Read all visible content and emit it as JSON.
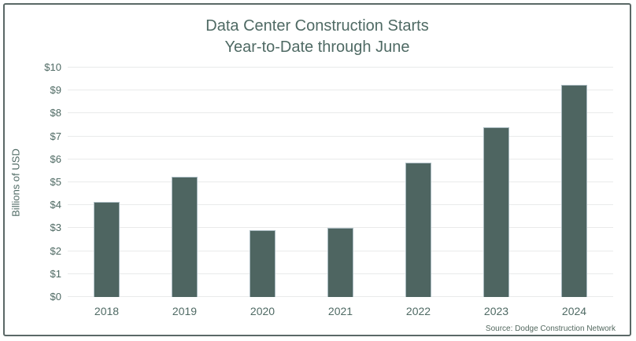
{
  "chart_data": {
    "type": "bar",
    "title_line1": "Data Center Construction Starts",
    "title_line2": "Year-to-Date through June",
    "ylabel": "Billions of USD",
    "categories": [
      "2018",
      "2019",
      "2020",
      "2021",
      "2022",
      "2023",
      "2024"
    ],
    "values": [
      4.15,
      5.25,
      2.9,
      3.0,
      5.85,
      7.4,
      9.25
    ],
    "ylim": [
      0,
      10
    ],
    "y_tick_step": 1,
    "y_tick_labels": [
      "$0",
      "$1",
      "$2",
      "$3",
      "$4",
      "$5",
      "$6",
      "$7",
      "$8",
      "$9",
      "$10"
    ],
    "grid": "horizontal",
    "legend_position": "none",
    "source": "Source: Dodge Construction Network",
    "colors": {
      "bar_fill": "#4e6561",
      "bar_border": "#a9bac0",
      "text": "#4f6a64",
      "gridline": "#e9eaea",
      "frame_border": "#5a6866",
      "background": "#ffffff"
    }
  }
}
